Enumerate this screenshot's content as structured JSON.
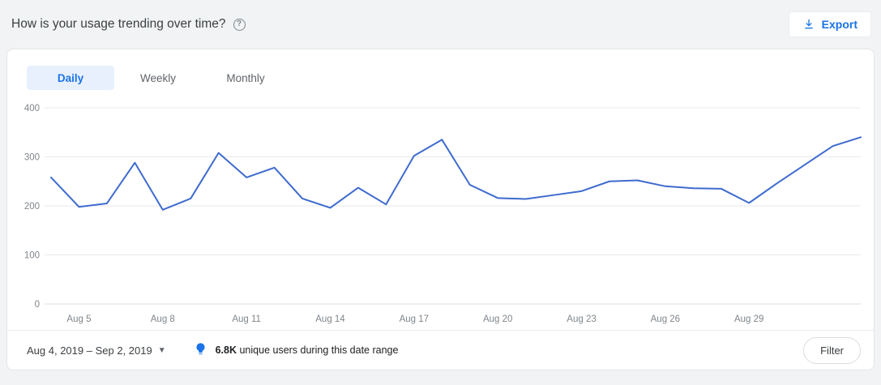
{
  "header": {
    "title": "How is your usage trending over time?",
    "export_label": "Export"
  },
  "icons": {
    "help_glyph": "?",
    "caret_glyph": "▼"
  },
  "tabs": [
    {
      "label": "Daily",
      "active": true
    },
    {
      "label": "Weekly",
      "active": false
    },
    {
      "label": "Monthly",
      "active": false
    }
  ],
  "chart_data": {
    "type": "line",
    "title": "",
    "xlabel": "",
    "ylabel": "",
    "x": [
      "Aug 4",
      "Aug 5",
      "Aug 6",
      "Aug 7",
      "Aug 8",
      "Aug 9",
      "Aug 10",
      "Aug 11",
      "Aug 12",
      "Aug 13",
      "Aug 14",
      "Aug 15",
      "Aug 16",
      "Aug 17",
      "Aug 18",
      "Aug 19",
      "Aug 20",
      "Aug 21",
      "Aug 22",
      "Aug 23",
      "Aug 24",
      "Aug 25",
      "Aug 26",
      "Aug 27",
      "Aug 28",
      "Aug 29",
      "Aug 30",
      "Aug 31",
      "Sep 1",
      "Sep 2"
    ],
    "values": [
      258,
      198,
      205,
      288,
      192,
      215,
      308,
      258,
      278,
      215,
      196,
      237,
      203,
      302,
      335,
      243,
      216,
      214,
      222,
      230,
      250,
      252,
      240,
      236,
      235,
      206,
      246,
      284,
      322,
      340
    ],
    "x_tick_labels": [
      "Aug 5",
      "Aug 8",
      "Aug 11",
      "Aug 14",
      "Aug 17",
      "Aug 20",
      "Aug 23",
      "Aug 26",
      "Aug 29"
    ],
    "ylim": [
      0,
      400
    ],
    "y_ticks": [
      0,
      100,
      200,
      300,
      400
    ],
    "grid": true,
    "legend": false,
    "line_color": "#3e6bce",
    "grid_color": "#e8eaed",
    "baseline_color": "#dadce0",
    "axis_label_color": "#80868b"
  },
  "footer": {
    "date_range": "Aug 4, 2019 – Sep 2, 2019",
    "insight_value": "6.8K",
    "insight_text": "unique users during this date range",
    "filter_label": "Filter"
  },
  "colors": {
    "accent": "#1a73e8",
    "page_bg": "#f1f3f4",
    "card_bg": "#ffffff",
    "tab_active_bg": "#e8f0fe"
  }
}
